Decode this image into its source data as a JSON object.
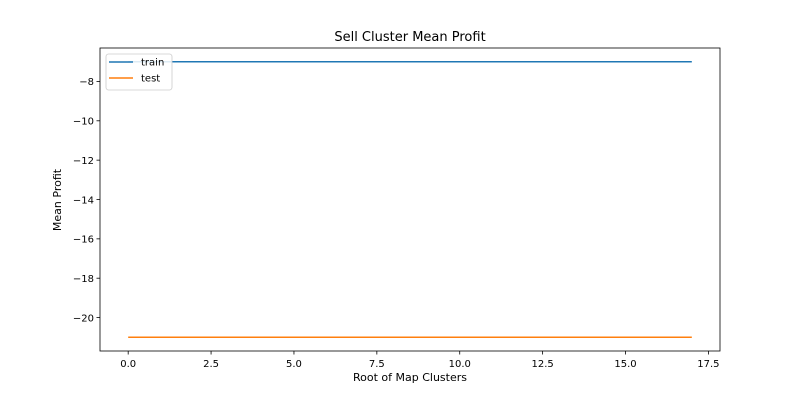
{
  "chart_data": {
    "type": "line",
    "title": "Sell Cluster Mean Profit",
    "xlabel": "Root of Map Clusters",
    "ylabel": "Mean Profit",
    "xlim": [
      -0.85,
      17.85
    ],
    "ylim": [
      -21.7,
      -6.3
    ],
    "x_ticks": [
      0.0,
      2.5,
      5.0,
      7.5,
      10.0,
      12.5,
      15.0,
      17.5
    ],
    "x_tick_labels": [
      "0.0",
      "2.5",
      "5.0",
      "7.5",
      "10.0",
      "12.5",
      "15.0",
      "17.5"
    ],
    "y_ticks": [
      -20,
      -18,
      -16,
      -14,
      -12,
      -10,
      -8
    ],
    "y_tick_labels": [
      "−20",
      "−18",
      "−16",
      "−14",
      "−12",
      "−10",
      "−8"
    ],
    "grid": false,
    "legend_position": "upper left",
    "series": [
      {
        "name": "train",
        "color": "#1f77b4",
        "x": [
          0,
          1,
          2,
          3,
          4,
          5,
          6,
          7,
          8,
          9,
          10,
          11,
          12,
          13,
          14,
          15,
          16,
          17
        ],
        "values": [
          -7.0,
          -7.0,
          -7.0,
          -7.0,
          -7.0,
          -7.0,
          -7.0,
          -7.0,
          -7.0,
          -7.0,
          -7.0,
          -7.0,
          -7.0,
          -7.0,
          -7.0,
          -7.0,
          -7.0,
          -7.0
        ]
      },
      {
        "name": "test",
        "color": "#ff7f0e",
        "x": [
          0,
          1,
          2,
          3,
          4,
          5,
          6,
          7,
          8,
          9,
          10,
          11,
          12,
          13,
          14,
          15,
          16,
          17
        ],
        "values": [
          -21.0,
          -21.0,
          -21.0,
          -21.0,
          -21.0,
          -21.0,
          -21.0,
          -21.0,
          -21.0,
          -21.0,
          -21.0,
          -21.0,
          -21.0,
          -21.0,
          -21.0,
          -21.0,
          -21.0,
          -21.0
        ]
      }
    ]
  }
}
